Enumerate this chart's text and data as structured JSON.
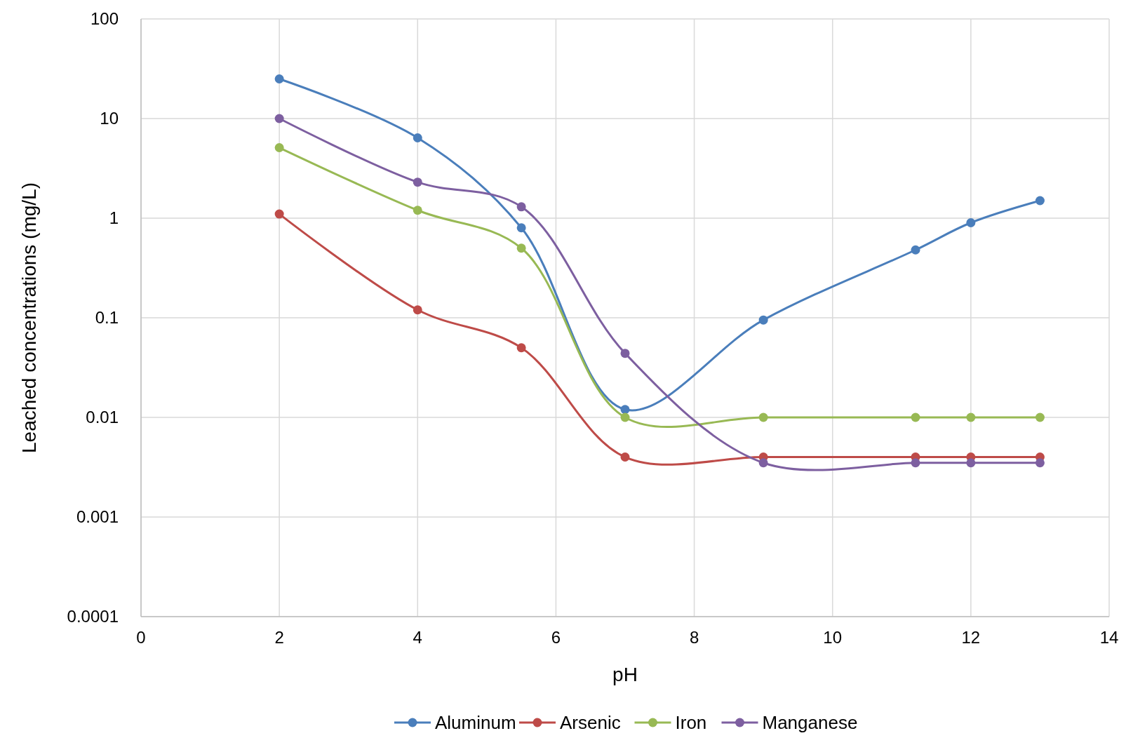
{
  "chart_data": {
    "type": "line",
    "xlabel": "pH",
    "ylabel": "Leached concentrations (mg/L)",
    "x": [
      2,
      4,
      5.5,
      7,
      9,
      11.2,
      12,
      13
    ],
    "log": "y",
    "xlim": [
      0,
      14
    ],
    "xticks": [
      0,
      2,
      4,
      6,
      8,
      10,
      12,
      14
    ],
    "ylim": [
      0.0001,
      100
    ],
    "yticks": [
      0.0001,
      0.001,
      0.01,
      0.1,
      1,
      10,
      100
    ],
    "grid": true,
    "legend": "bottom",
    "marker": "circle",
    "line_style": "solid",
    "series": [
      {
        "name": "Aluminum",
        "color": "#4a7ebb",
        "values": [
          25,
          6.4,
          0.8,
          0.012,
          0.095,
          0.48,
          0.9,
          1.5
        ]
      },
      {
        "name": "Arsenic",
        "color": "#be4b48",
        "values": [
          1.1,
          0.12,
          0.05,
          0.004,
          0.004,
          0.004,
          0.004,
          0.004
        ]
      },
      {
        "name": "Iron",
        "color": "#98b954",
        "values": [
          5.1,
          1.2,
          0.5,
          0.01,
          0.01,
          0.01,
          0.01,
          0.01
        ]
      },
      {
        "name": "Manganese",
        "color": "#7d5fa0",
        "values": [
          10,
          2.3,
          1.3,
          0.044,
          0.0035,
          0.0035,
          0.0035,
          0.0035
        ]
      }
    ]
  }
}
